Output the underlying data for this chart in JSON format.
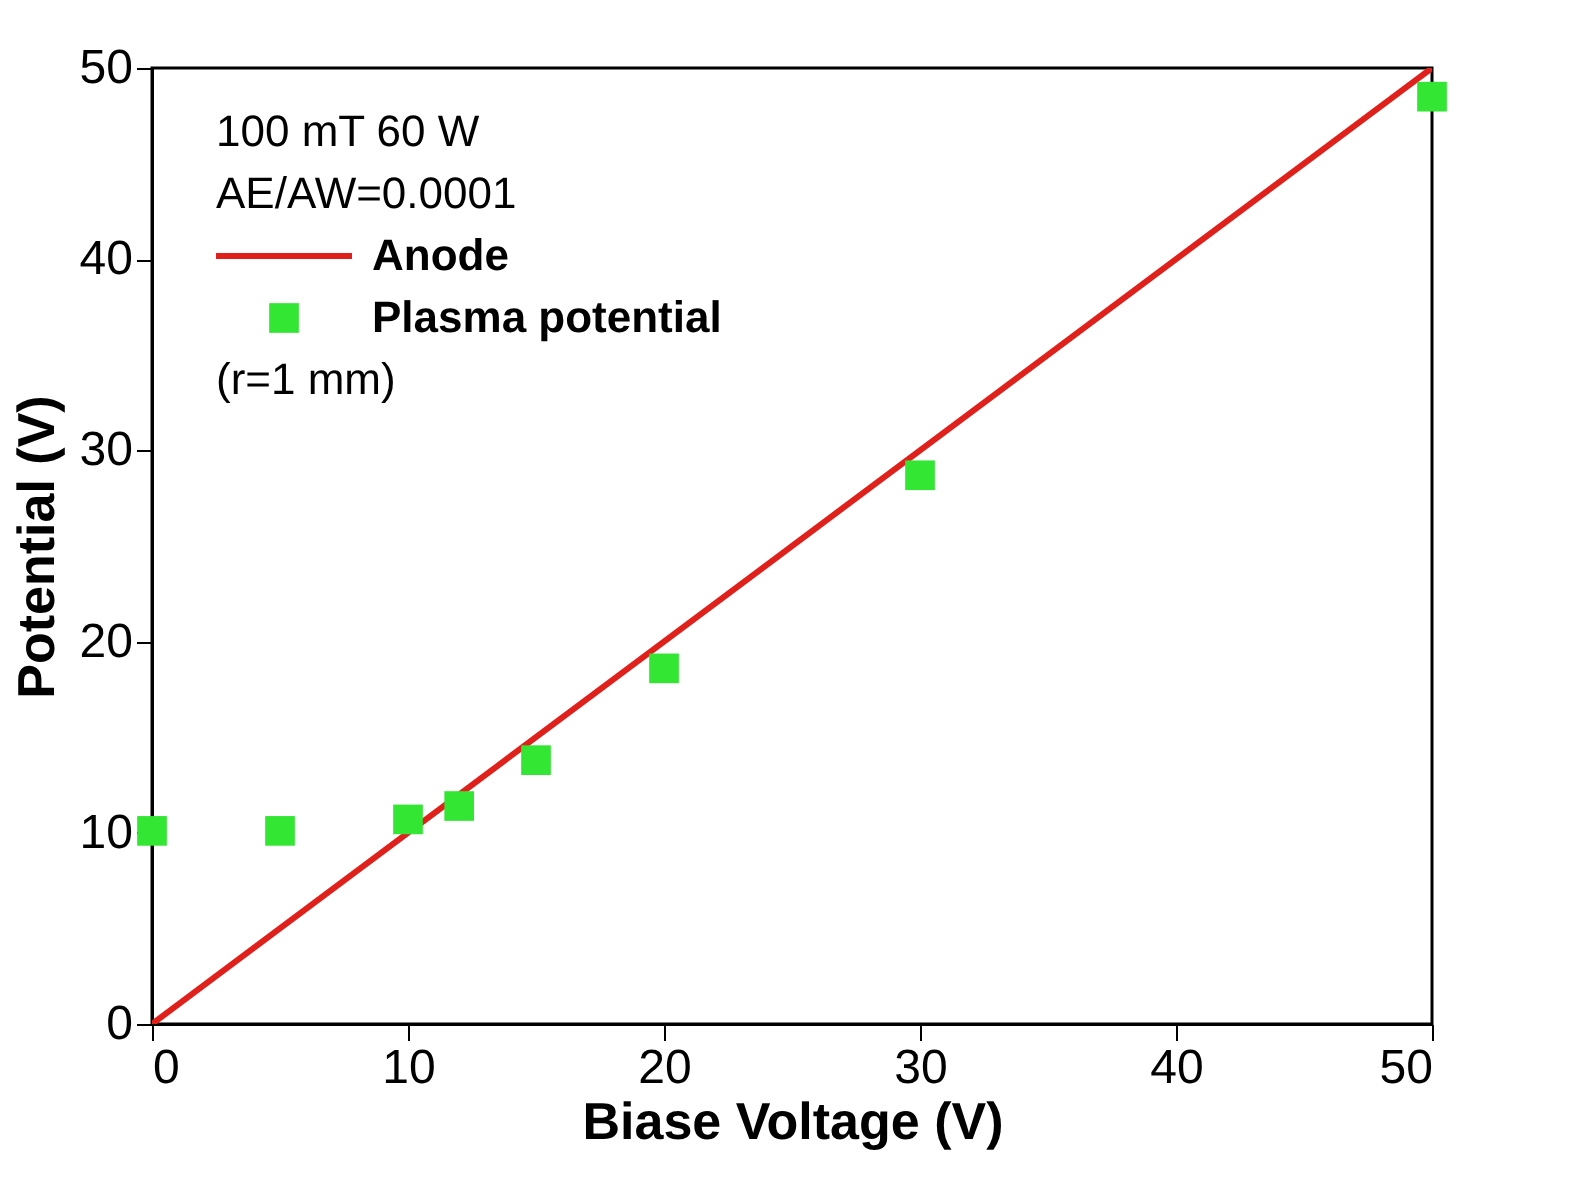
{
  "chart_data": {
    "type": "scatter",
    "xlabel": "Biase Voltage (V)",
    "ylabel": "Potential (V)",
    "xlim": [
      0,
      50
    ],
    "ylim": [
      0,
      50
    ],
    "xticks": [
      0,
      10,
      20,
      30,
      40,
      50
    ],
    "yticks": [
      0,
      10,
      20,
      30,
      40,
      50
    ],
    "grid": false,
    "legend": "top left",
    "annotations": [
      "100 mT 60 W",
      "AE/AW=0.0001",
      "(r=1 mm)"
    ],
    "series": [
      {
        "name": "Anode",
        "type": "line",
        "color": "#e0201b",
        "x": [
          0,
          50
        ],
        "values": [
          0,
          50
        ],
        "line_style": "solid"
      },
      {
        "name": "Plasma potential",
        "color": "#33e633",
        "x": [
          0,
          5,
          10,
          12,
          15,
          20,
          30,
          50
        ],
        "values": [
          10.1,
          10.1,
          10.7,
          11.4,
          13.8,
          18.6,
          28.7,
          48.5
        ],
        "marker": "square"
      }
    ]
  }
}
